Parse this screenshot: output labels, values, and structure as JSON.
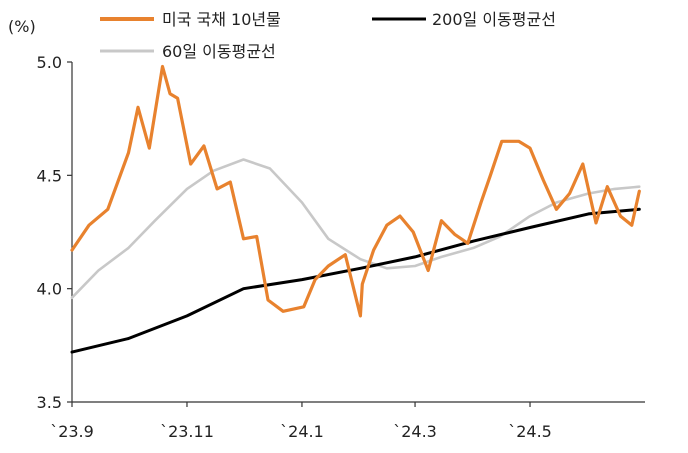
{
  "chart_data": {
    "type": "line",
    "y_unit": "(%)",
    "ylim": [
      3.5,
      5.0
    ],
    "y_ticks": [
      "5.0",
      "4.5",
      "4.0",
      "3.5"
    ],
    "x_ticks": [
      "`23.9",
      "`23.11",
      "`24.1",
      "`24.3",
      "`24.5"
    ],
    "x_range_months": [
      "2023-09",
      "2024-06"
    ],
    "grid": false,
    "legend_placement": "top",
    "series": [
      {
        "name": "미국 국채 10년물",
        "color": "#E8822E",
        "x": [
          "2023-09-01",
          "2023-09-10",
          "2023-09-20",
          "2023-10-01",
          "2023-10-06",
          "2023-10-12",
          "2023-10-19",
          "2023-10-23",
          "2023-10-27",
          "2023-11-03",
          "2023-11-10",
          "2023-11-17",
          "2023-11-24",
          "2023-12-01",
          "2023-12-08",
          "2023-12-14",
          "2023-12-22",
          "2024-01-02",
          "2024-01-08",
          "2024-01-15",
          "2024-01-24",
          "2024-02-01",
          "2024-02-02",
          "2024-02-08",
          "2024-02-15",
          "2024-02-22",
          "2024-02-29",
          "2024-03-08",
          "2024-03-15",
          "2024-03-22",
          "2024-03-29",
          "2024-04-05",
          "2024-04-10",
          "2024-04-16",
          "2024-04-25",
          "2024-05-01",
          "2024-05-08",
          "2024-05-15",
          "2024-05-22",
          "2024-05-29",
          "2024-06-05",
          "2024-06-11",
          "2024-06-18",
          "2024-06-24",
          "2024-06-28"
        ],
        "values": [
          4.17,
          4.28,
          4.35,
          4.6,
          4.8,
          4.62,
          4.98,
          4.86,
          4.84,
          4.55,
          4.63,
          4.44,
          4.47,
          4.22,
          4.23,
          3.95,
          3.9,
          3.92,
          4.04,
          4.1,
          4.15,
          3.88,
          4.02,
          4.17,
          4.28,
          4.32,
          4.25,
          4.08,
          4.3,
          4.24,
          4.2,
          4.38,
          4.5,
          4.65,
          4.65,
          4.62,
          4.48,
          4.35,
          4.42,
          4.55,
          4.29,
          4.45,
          4.32,
          4.28,
          4.43
        ]
      },
      {
        "name": "200일 이동평균선",
        "color": "#000000",
        "x": [
          "2023-09-01",
          "2023-10-01",
          "2023-11-01",
          "2023-12-01",
          "2024-01-01",
          "2024-02-01",
          "2024-03-01",
          "2024-04-01",
          "2024-05-01",
          "2024-06-01",
          "2024-06-28"
        ],
        "values": [
          3.72,
          3.78,
          3.88,
          4.0,
          4.04,
          4.09,
          4.14,
          4.21,
          4.27,
          4.33,
          4.35
        ]
      },
      {
        "name": "60일 이동평균선",
        "color": "#C8C8C8",
        "x": [
          "2023-09-01",
          "2023-09-15",
          "2023-10-01",
          "2023-10-15",
          "2023-11-01",
          "2023-11-15",
          "2023-12-01",
          "2023-12-15",
          "2024-01-01",
          "2024-01-15",
          "2024-02-01",
          "2024-02-15",
          "2024-03-01",
          "2024-03-15",
          "2024-04-01",
          "2024-04-15",
          "2024-05-01",
          "2024-05-15",
          "2024-06-01",
          "2024-06-15",
          "2024-06-28"
        ],
        "values": [
          3.96,
          4.08,
          4.18,
          4.3,
          4.44,
          4.52,
          4.57,
          4.53,
          4.38,
          4.22,
          4.13,
          4.09,
          4.1,
          4.14,
          4.18,
          4.23,
          4.32,
          4.38,
          4.42,
          4.44,
          4.45
        ]
      }
    ]
  }
}
